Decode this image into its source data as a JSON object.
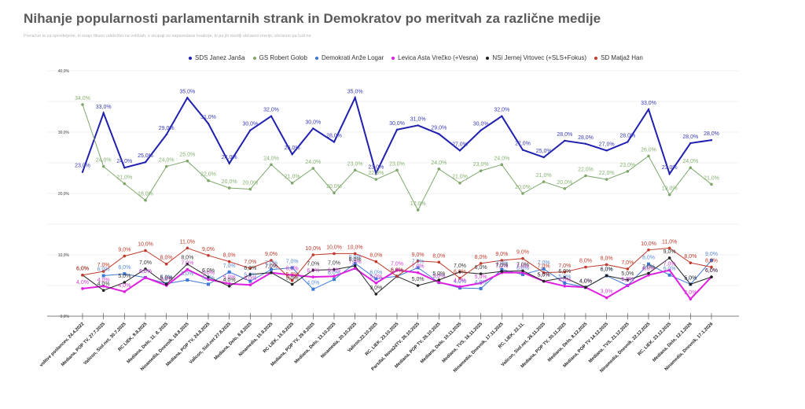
{
  "chart_data": {
    "type": "line",
    "title": "Nihanje popularnosti parlamentarnih strank in Demokratov po meritvah za različne medije",
    "subtitle": "Preračun le za opredeljene, ki imajo fiksno udeležbo na volitvah, v skupaji so napovedane koalicije, ki pa jih mediji občasno merijo, občasno pa tudi ne",
    "xlabel": "",
    "ylabel": "",
    "ylim": [
      0,
      40
    ],
    "yticks": [
      "0,0%",
      "10,0%",
      "20,0%",
      "30,0%",
      "40,0%"
    ],
    "ytick_values": [
      0,
      10,
      20,
      30,
      40
    ],
    "grid": true,
    "legend_position": "top",
    "categories": [
      "volitve poslancev, 24.4.2022",
      "Mediana, POP TV, 27.7.2025",
      "Valicon, Siol.net, 30.7.2025",
      "RC LIEK, 9.8.2025",
      "Mediana, Delo, 11. 8. 2025",
      "Ninamedia, Dnevnik, 18.8.2025",
      "Mediana, POP TV, 24.8.2025",
      "Valicon, Siol.net 27.8.2025",
      "Mediana, Delo, 8.9.2025",
      "Ninamedia, 15.9.2025",
      "RC LIEK, 15.9.2025",
      "Mediana, POP TV, 29.9.2025",
      "Mediana, Delo, 13.10.2025",
      "Ninamedia, 20.10.2025",
      "Valicon,22.10.2025",
      "RC, LIEK, 23.10.2025",
      "Parsifal, Nova24TV, 26.10.2025",
      "Mediana, POP TV, 26.10.2025",
      "Mediana, Delo, 10.11.2025",
      "Mediana, TVS, 16.11.2025",
      "Ninamedia, Dnevnik, 17.11.2025",
      "RC, LIEK, 22.11.",
      "Valicon, Siol.net, 26.11.2025",
      "Mediana, POP TV, 30.11.2025",
      "Mediana, Delo, 8.12.2025",
      "Mediana, POP TV 14.12.2025",
      "Mediana, TVS, 21.12.2025",
      "Ninamedia, Dnevnik, 22.12.2025",
      "RC, LIEK, 23.12.2025",
      "Mediana, Delo, 12.1.2026",
      "Ninamedia, Dnevnik, 17.1.2026"
    ],
    "series": [
      {
        "name": "SDS Janez Janša",
        "color": "#2020b0",
        "label_color": "#3a3ab8",
        "width": 2,
        "values": [
          23.5,
          33.1,
          24.2,
          25.1,
          29.6,
          35.6,
          31.4,
          24.9,
          30.3,
          32.6,
          26.4,
          30.6,
          28.4,
          35.6,
          23.3,
          30.4,
          31.1,
          29.7,
          27.0,
          30.3,
          32.6,
          27.1,
          25.9,
          28.6,
          28.1,
          27.0,
          28.4,
          33.7,
          23.2,
          28.2,
          28.7
        ]
      },
      {
        "name": "GS Robert Golob",
        "color": "#7ea66a",
        "label_color": "#86b070",
        "width": 1,
        "values": [
          34.5,
          24.4,
          21.6,
          18.9,
          24.4,
          25.3,
          22.1,
          20.9,
          20.7,
          24.7,
          21.7,
          24.1,
          20.1,
          23.8,
          22.3,
          23.8,
          17.3,
          24.0,
          21.7,
          23.7,
          24.7,
          20.0,
          21.9,
          20.8,
          22.9,
          22.3,
          23.6,
          26.1,
          19.8,
          24.2,
          21.5
        ]
      },
      {
        "name": "Demokrati Anže Logar",
        "color": "#3c78d8",
        "label_color": "#5a8ad8",
        "width": 1,
        "values": [
          null,
          6.6,
          6.9,
          6.3,
          5.3,
          5.9,
          5.2,
          7.2,
          5.7,
          7.6,
          7.9,
          4.4,
          6.0,
          8.6,
          6.1,
          6.5,
          7.9,
          5.5,
          4.6,
          4.5,
          7.6,
          6.8,
          7.7,
          5.4,
          4.7,
          6.6,
          5.0,
          8.5,
          6.7,
          5.2,
          9.1
        ]
      },
      {
        "name": "Levica Asta Vrečko (+Vesna)",
        "color": "#e020e0",
        "label_color": "#d040d0",
        "width": 2,
        "values": [
          4.5,
          4.9,
          4.0,
          6.3,
          5.0,
          7.6,
          6.0,
          5.3,
          5.1,
          7.1,
          6.7,
          6.4,
          6.5,
          7.8,
          5.4,
          7.5,
          7.1,
          5.5,
          4.8,
          5.4,
          7.1,
          7.1,
          5.7,
          4.9,
          4.7,
          3.0,
          5.0,
          6.7,
          7.5,
          2.8,
          6.4
        ]
      },
      {
        "name": "NSi Jernej Vrtovec (+SLS+Fokus)",
        "color": "#222222",
        "label_color": "#333333",
        "width": 1,
        "values": [
          6.7,
          4.2,
          5.5,
          7.7,
          5.2,
          8.5,
          6.4,
          4.9,
          6.8,
          7.1,
          5.2,
          7.5,
          7.6,
          8.2,
          3.6,
          6.5,
          5.0,
          5.9,
          7.2,
          6.9,
          7.3,
          7.4,
          5.7,
          6.3,
          4.7,
          6.6,
          5.9,
          7.0,
          9.5,
          5.2,
          6.4
        ]
      },
      {
        "name": "SD Matjaž Han",
        "color": "#c0392b",
        "label_color": "#c0392b",
        "width": 1,
        "values": [
          6.7,
          7.3,
          9.8,
          10.7,
          8.5,
          11.1,
          9.9,
          8.9,
          7.8,
          9.1,
          5.8,
          10.0,
          10.2,
          10.2,
          8.9,
          6.5,
          9.0,
          8.8,
          6.2,
          8.6,
          9.1,
          9.4,
          7.1,
          7.2,
          8.0,
          8.4,
          7.7,
          10.8,
          11.1,
          8.7,
          8.0
        ]
      }
    ]
  }
}
